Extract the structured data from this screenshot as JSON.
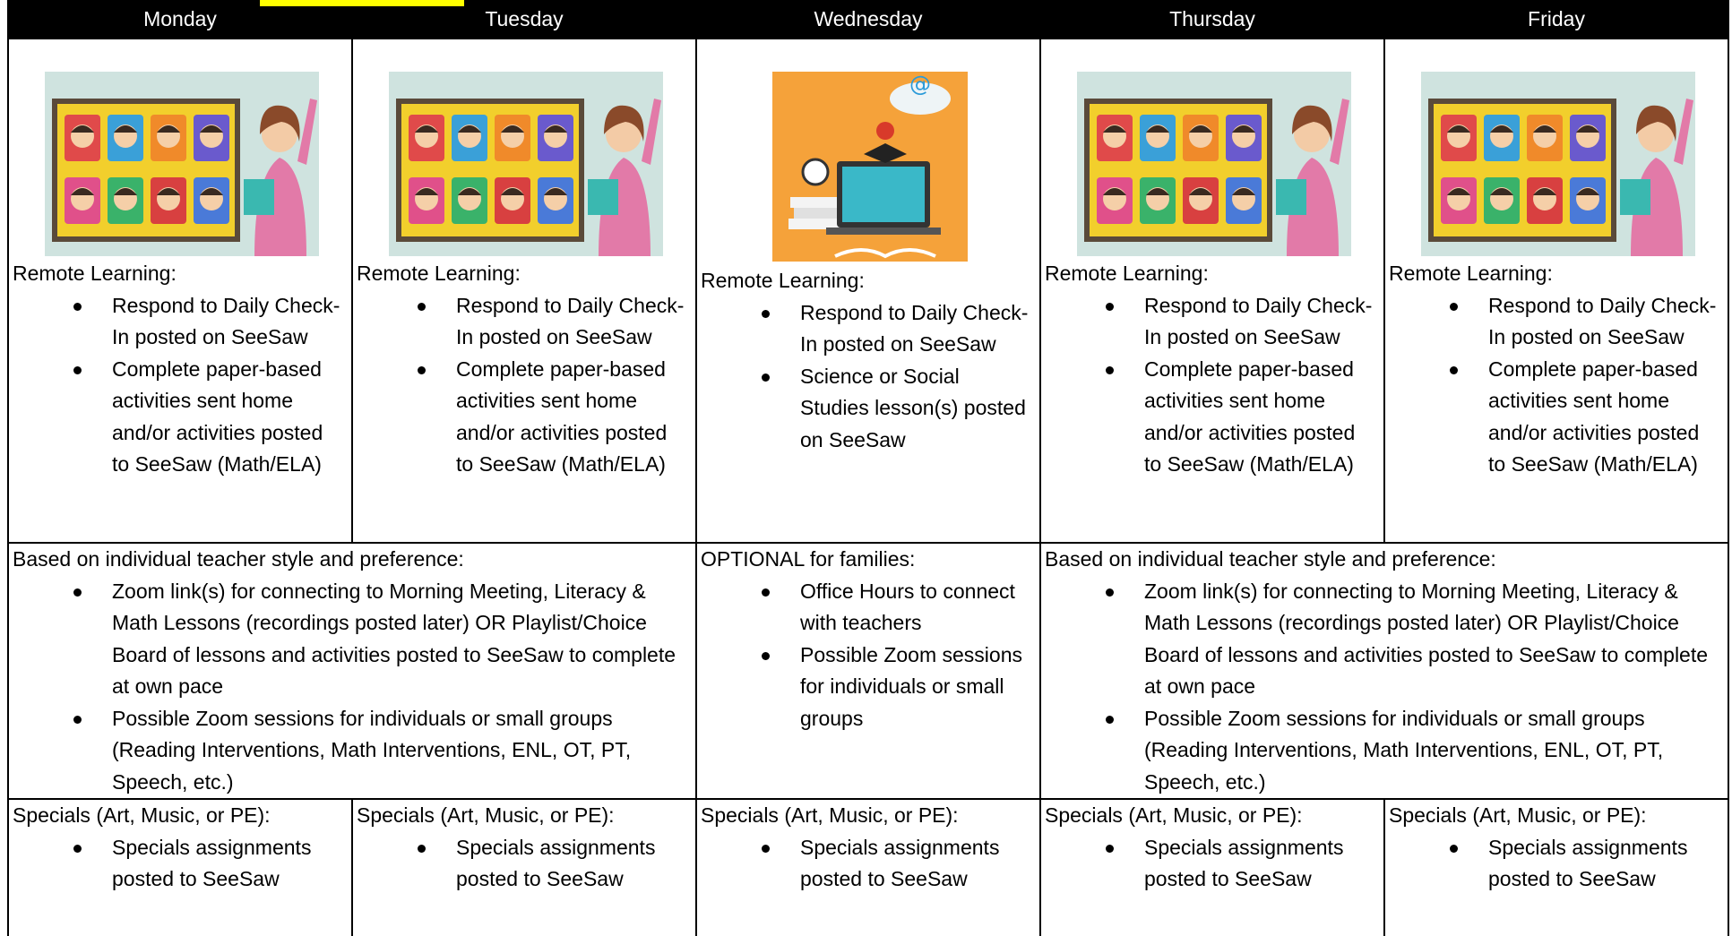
{
  "header": {
    "days": [
      "Monday",
      "Tuesday",
      "Wednesday",
      "Thursday",
      "Friday"
    ]
  },
  "rows": [
    {
      "cells": [
        {
          "heading": "Remote Learning:",
          "bullets": [
            "Respond to Daily Check-In posted on SeeSaw",
            "Complete paper-based activities sent home and/or activities posted to SeeSaw (Math/ELA)"
          ]
        },
        {
          "heading": "Remote Learning:",
          "bullets": [
            "Respond to Daily Check-In posted on SeeSaw",
            "Complete paper-based activities sent home and/or activities posted to SeeSaw (Math/ELA)"
          ]
        },
        {
          "heading": "Remote Learning:",
          "bullets": [
            "Respond to Daily Check-In posted on SeeSaw",
            "Science or Social Studies lesson(s) posted on SeeSaw"
          ]
        },
        {
          "heading": "Remote Learning:",
          "bullets": [
            "Respond to Daily Check-In posted on SeeSaw",
            "Complete paper-based activities sent home and/or activities posted to SeeSaw (Math/ELA)"
          ]
        },
        {
          "heading": "Remote Learning:",
          "bullets": [
            "Respond to Daily Check-In posted on SeeSaw",
            "Complete paper-based activities sent home and/or activities posted to SeeSaw (Math/ELA)"
          ]
        }
      ]
    },
    {
      "cells": [
        {
          "heading": "Based on individual teacher style and preference:",
          "bullets": [
            "Zoom link(s) for connecting to Morning Meeting, Literacy & Math Lessons (recordings posted later) OR Playlist/Choice Board of lessons and activities posted to SeeSaw to complete at own pace",
            "Possible Zoom sessions for individuals or small groups (Reading Interventions, Math Interventions, ENL, OT, PT, Speech, etc.)"
          ]
        },
        {
          "heading": "OPTIONAL for families:",
          "bullets": [
            "Office Hours to connect with teachers",
            "Possible Zoom sessions for individuals or small groups"
          ]
        },
        {
          "heading": "Based on individual teacher style and preference:",
          "bullets": [
            "Zoom link(s) for connecting to Morning Meeting, Literacy & Math Lessons (recordings posted later) OR Playlist/Choice Board of lessons and activities posted to SeeSaw to complete at own pace",
            "Possible Zoom sessions for individuals or small groups (Reading Interventions, Math Interventions, ENL, OT, PT, Speech, etc.)"
          ]
        }
      ]
    },
    {
      "cells": [
        {
          "heading": "Specials (Art, Music, or PE):",
          "bullets": [
            "Specials assignments posted to SeeSaw"
          ]
        },
        {
          "heading": "Specials (Art, Music, or PE):",
          "bullets": [
            "Specials assignments posted to SeeSaw"
          ]
        },
        {
          "heading": "Specials (Art, Music, or PE):",
          "bullets": [
            "Specials assignments posted to SeeSaw"
          ]
        },
        {
          "heading": "Specials (Art, Music, or PE):",
          "bullets": [
            "Specials assignments posted to SeeSaw"
          ]
        },
        {
          "heading": "Specials (Art, Music, or PE):",
          "bullets": [
            "Specials assignments posted to SeeSaw"
          ]
        }
      ]
    }
  ]
}
